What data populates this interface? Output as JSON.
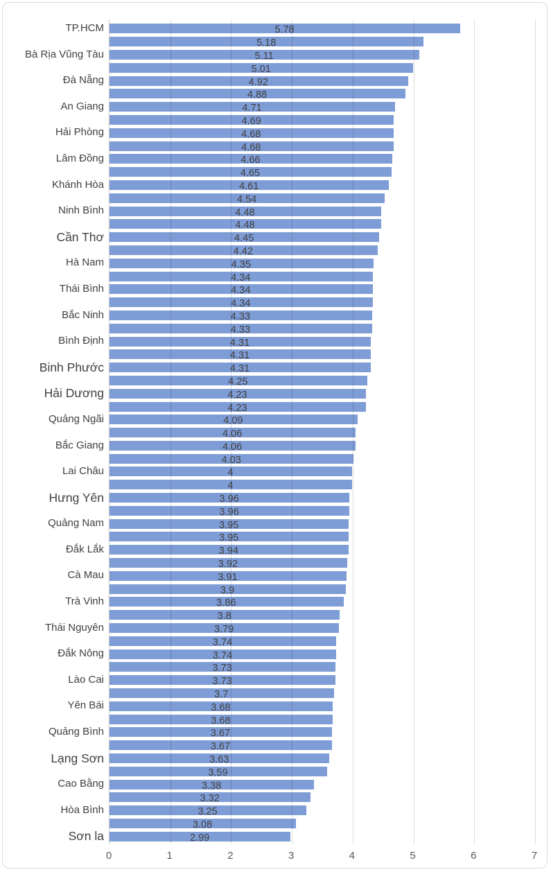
{
  "chart_data": {
    "type": "bar",
    "orientation": "horizontal",
    "title": "",
    "xlabel": "",
    "ylabel": "",
    "xlim": [
      0,
      7
    ],
    "x_ticks": [
      "0",
      "1",
      "2",
      "3",
      "4",
      "5",
      "6",
      "7"
    ],
    "grid": true,
    "legend": false,
    "value_labels_position": "inside-center",
    "bars": [
      {
        "label": "TP.HCM",
        "value": 5.78,
        "large_font": false
      },
      {
        "label": "",
        "value": 5.18,
        "large_font": false
      },
      {
        "label": "Bà Rịa Vũng Tàu",
        "value": 5.11,
        "large_font": false
      },
      {
        "label": "",
        "value": 5.01,
        "large_font": false
      },
      {
        "label": "Đà Nẵng",
        "value": 4.92,
        "large_font": false
      },
      {
        "label": "",
        "value": 4.88,
        "large_font": false
      },
      {
        "label": "An Giang",
        "value": 4.71,
        "large_font": false
      },
      {
        "label": "",
        "value": 4.69,
        "large_font": false
      },
      {
        "label": "Hải Phòng",
        "value": 4.68,
        "large_font": false
      },
      {
        "label": "",
        "value": 4.68,
        "large_font": false
      },
      {
        "label": "Lâm Đồng",
        "value": 4.66,
        "large_font": false
      },
      {
        "label": "",
        "value": 4.65,
        "large_font": false
      },
      {
        "label": "Khánh Hòa",
        "value": 4.61,
        "large_font": false
      },
      {
        "label": "",
        "value": 4.54,
        "large_font": false
      },
      {
        "label": "Ninh Bình",
        "value": 4.48,
        "large_font": false
      },
      {
        "label": "",
        "value": 4.48,
        "large_font": false
      },
      {
        "label": "Cần Thơ",
        "value": 4.45,
        "large_font": true
      },
      {
        "label": "",
        "value": 4.42,
        "large_font": false
      },
      {
        "label": "Hà Nam",
        "value": 4.35,
        "large_font": false
      },
      {
        "label": "",
        "value": 4.34,
        "large_font": false
      },
      {
        "label": "Thái Bình",
        "value": 4.34,
        "large_font": false
      },
      {
        "label": "",
        "value": 4.34,
        "large_font": false
      },
      {
        "label": "Bắc Ninh",
        "value": 4.33,
        "large_font": false
      },
      {
        "label": "",
        "value": 4.33,
        "large_font": false
      },
      {
        "label": "Bình Định",
        "value": 4.31,
        "large_font": false
      },
      {
        "label": "",
        "value": 4.31,
        "large_font": false
      },
      {
        "label": "Binh Phước",
        "value": 4.31,
        "large_font": true
      },
      {
        "label": "",
        "value": 4.25,
        "large_font": false
      },
      {
        "label": "Hải Dương",
        "value": 4.23,
        "large_font": true
      },
      {
        "label": "",
        "value": 4.23,
        "large_font": false
      },
      {
        "label": "Quảng Ngãi",
        "value": 4.09,
        "large_font": false
      },
      {
        "label": "",
        "value": 4.06,
        "large_font": false
      },
      {
        "label": "Bắc Giang",
        "value": 4.06,
        "large_font": false
      },
      {
        "label": "",
        "value": 4.03,
        "large_font": false
      },
      {
        "label": "Lai Châu",
        "value": 4,
        "large_font": false
      },
      {
        "label": "",
        "value": 4,
        "large_font": false
      },
      {
        "label": "Hưng Yên",
        "value": 3.96,
        "large_font": true
      },
      {
        "label": "",
        "value": 3.96,
        "large_font": false
      },
      {
        "label": "Quảng Nam",
        "value": 3.95,
        "large_font": false
      },
      {
        "label": "",
        "value": 3.95,
        "large_font": false
      },
      {
        "label": "Đắk Lắk",
        "value": 3.94,
        "large_font": false
      },
      {
        "label": "",
        "value": 3.92,
        "large_font": false
      },
      {
        "label": "Cà Mau",
        "value": 3.91,
        "large_font": false
      },
      {
        "label": "",
        "value": 3.9,
        "large_font": false
      },
      {
        "label": "Trà Vinh",
        "value": 3.86,
        "large_font": false
      },
      {
        "label": "",
        "value": 3.8,
        "large_font": false
      },
      {
        "label": "Thái Nguyên",
        "value": 3.79,
        "large_font": false
      },
      {
        "label": "",
        "value": 3.74,
        "large_font": false
      },
      {
        "label": "Đắk Nông",
        "value": 3.74,
        "large_font": false
      },
      {
        "label": "",
        "value": 3.73,
        "large_font": false
      },
      {
        "label": "Lào Cai",
        "value": 3.73,
        "large_font": false
      },
      {
        "label": "",
        "value": 3.7,
        "large_font": false
      },
      {
        "label": "Yên Bái",
        "value": 3.68,
        "large_font": false
      },
      {
        "label": "",
        "value": 3.68,
        "large_font": false
      },
      {
        "label": "Quảng Bình",
        "value": 3.67,
        "large_font": false
      },
      {
        "label": "",
        "value": 3.67,
        "large_font": false
      },
      {
        "label": "Lạng Sơn",
        "value": 3.63,
        "large_font": true
      },
      {
        "label": "",
        "value": 3.59,
        "large_font": false
      },
      {
        "label": "Cao Bằng",
        "value": 3.38,
        "large_font": false
      },
      {
        "label": "",
        "value": 3.32,
        "large_font": false
      },
      {
        "label": "Hòa Bình",
        "value": 3.25,
        "large_font": false
      },
      {
        "label": "",
        "value": 3.08,
        "large_font": false
      },
      {
        "label": "Sơn la",
        "value": 2.99,
        "large_font": true
      }
    ]
  },
  "colors": {
    "bar_fill": "#7E9CD6",
    "value_label_text": "#404040",
    "category_label_text": "#404040",
    "axis_tick_text": "#595959",
    "gridline": "rgba(0,0,0,0.14)",
    "axis_line": "#C9C9C9",
    "chart_border": "#D9D9D9",
    "background": "#ffffff"
  }
}
